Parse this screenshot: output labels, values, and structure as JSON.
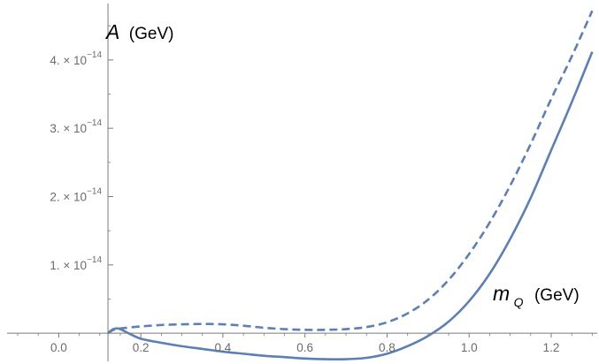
{
  "chart_data": {
    "type": "line",
    "title": "",
    "ylabel_symbol": "A",
    "ylabel_unit": "(GeV)",
    "xlabel_symbol": "m",
    "xlabel_subscript": "Q",
    "xlabel_unit": "(GeV)",
    "xlim": [
      -0.1,
      1.31
    ],
    "ylim": [
      -3.6e-15,
      4.8e-14
    ],
    "axis_origin_x": 0.12,
    "x_ticks": [
      {
        "value": 0.0,
        "label": "0.0"
      },
      {
        "value": 0.2,
        "label": "0.2"
      },
      {
        "value": 0.4,
        "label": "0.4"
      },
      {
        "value": 0.6,
        "label": "0.6"
      },
      {
        "value": 0.8,
        "label": "0.8"
      },
      {
        "value": 1.0,
        "label": "1.0"
      },
      {
        "value": 1.2,
        "label": "1.2"
      }
    ],
    "y_ticks": [
      {
        "value": 1e-14,
        "mantissa": "1. × 10",
        "exponent": "−14"
      },
      {
        "value": 2e-14,
        "mantissa": "2. × 10",
        "exponent": "−14"
      },
      {
        "value": 3e-14,
        "mantissa": "3. × 10",
        "exponent": "−14"
      },
      {
        "value": 4e-14,
        "mantissa": "4. × 10",
        "exponent": "−14"
      }
    ],
    "grid": false,
    "legend": "none",
    "colors": {
      "series": "#5b7fb6",
      "axis": "#7a7a7a",
      "tick_label": "#6b6b6b"
    },
    "series": [
      {
        "style": "solid",
        "x": [
          0.12,
          0.13,
          0.14,
          0.15,
          0.17,
          0.2,
          0.25,
          0.3,
          0.35,
          0.4,
          0.45,
          0.5,
          0.55,
          0.6,
          0.65,
          0.7,
          0.75,
          0.8,
          0.85,
          0.9,
          0.95,
          1.0,
          1.05,
          1.1,
          1.15,
          1.2,
          1.25,
          1.3
        ],
        "y": [
          0.0,
          5e-16,
          7e-16,
          6e-16,
          0.0,
          -8e-16,
          -1.4e-15,
          -1.9e-15,
          -2.3e-15,
          -2.7e-15,
          -3e-15,
          -3.3e-15,
          -3.5e-15,
          -3.7e-15,
          -3.8e-15,
          -3.8e-15,
          -3.6e-15,
          -3e-15,
          -1.9e-15,
          -4e-16,
          1.7e-15,
          4.7e-15,
          8.7e-15,
          1.38e-14,
          1.98e-14,
          2.68e-14,
          3.38e-14,
          4.12e-14
        ]
      },
      {
        "style": "dashed",
        "x": [
          0.12,
          0.13,
          0.14,
          0.15,
          0.2,
          0.25,
          0.3,
          0.35,
          0.4,
          0.45,
          0.5,
          0.55,
          0.6,
          0.65,
          0.7,
          0.75,
          0.8,
          0.85,
          0.9,
          0.95,
          1.0,
          1.05,
          1.1,
          1.15,
          1.2,
          1.25,
          1.3
        ],
        "y": [
          0.0,
          4e-16,
          6e-16,
          7e-16,
          1e-15,
          1.2e-15,
          1.3e-15,
          1.35e-15,
          1.3e-15,
          1.1e-15,
          8e-16,
          6e-16,
          5e-16,
          5e-16,
          6e-16,
          9e-16,
          1.6e-15,
          2.9e-15,
          4.9e-15,
          7.8e-15,
          1.16e-14,
          1.62e-14,
          2.16e-14,
          2.77e-14,
          3.43e-14,
          4.05e-14,
          4.72e-14
        ]
      }
    ]
  }
}
